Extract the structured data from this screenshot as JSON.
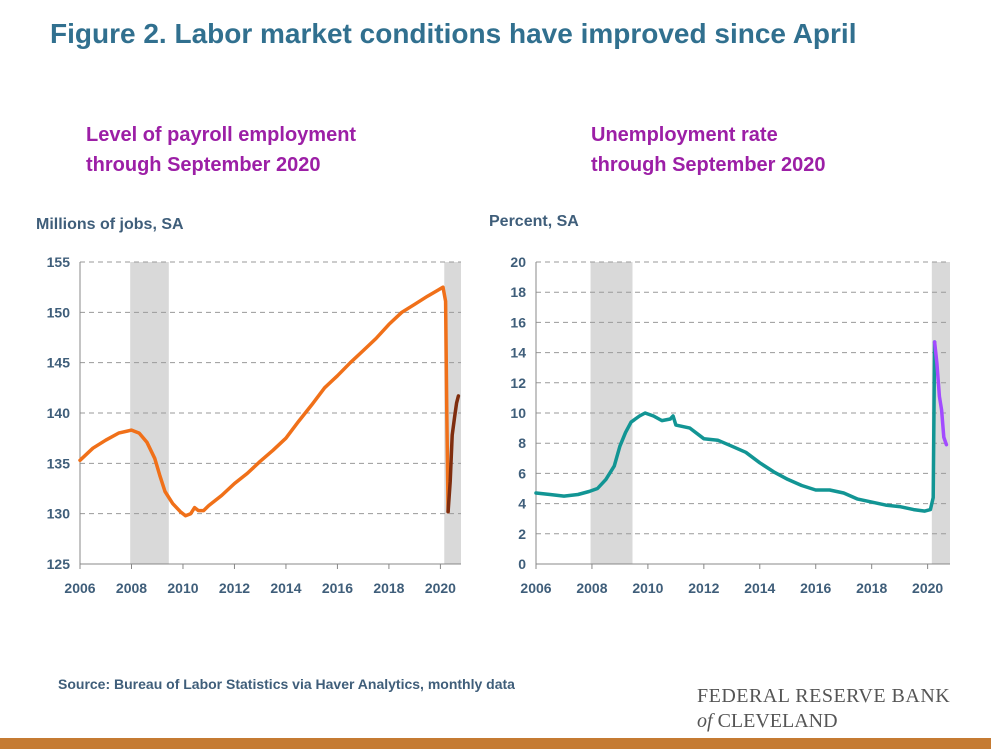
{
  "page": {
    "title": "Figure 2. Labor market conditions have improved since April",
    "source": "Source: Bureau of Labor Statistics via Haver Analytics, monthly data",
    "logo_line1": "FEDERAL RESERVE BANK",
    "logo_of": "of",
    "logo_line2": "CLEVELAND",
    "bottom_bar_color": "#c57b33"
  },
  "chart_data": [
    {
      "type": "line",
      "title": "Level of payroll employment",
      "subtitle": "through September 2020",
      "ylabel": "Millions of jobs, SA",
      "xlim": [
        2006,
        2020.8
      ],
      "ylim": [
        125,
        155
      ],
      "xticks": [
        "2006",
        "2008",
        "2010",
        "2012",
        "2014",
        "2016",
        "2018",
        "2020"
      ],
      "yticks": [
        "125",
        "130",
        "135",
        "140",
        "145",
        "150",
        "155"
      ],
      "grid": "horizontal dashed",
      "recessions": [
        [
          2007.95,
          2009.45
        ],
        [
          2020.15,
          2020.8
        ]
      ],
      "series": [
        {
          "color": "#f07019",
          "points": [
            [
              2006.0,
              135.3
            ],
            [
              2006.5,
              136.5
            ],
            [
              2007.0,
              137.3
            ],
            [
              2007.5,
              138.0
            ],
            [
              2008.0,
              138.3
            ],
            [
              2008.3,
              138.0
            ],
            [
              2008.6,
              137.1
            ],
            [
              2008.9,
              135.5
            ],
            [
              2009.1,
              133.8
            ],
            [
              2009.3,
              132.2
            ],
            [
              2009.6,
              131.0
            ],
            [
              2009.9,
              130.2
            ],
            [
              2010.1,
              129.8
            ],
            [
              2010.3,
              130.0
            ],
            [
              2010.45,
              130.6
            ],
            [
              2010.6,
              130.3
            ],
            [
              2010.8,
              130.3
            ],
            [
              2011.0,
              130.8
            ],
            [
              2011.5,
              131.8
            ],
            [
              2012.0,
              133.0
            ],
            [
              2012.5,
              134.0
            ],
            [
              2013.0,
              135.2
            ],
            [
              2013.5,
              136.3
            ],
            [
              2014.0,
              137.5
            ],
            [
              2014.5,
              139.2
            ],
            [
              2015.0,
              140.8
            ],
            [
              2015.5,
              142.5
            ],
            [
              2016.0,
              143.7
            ],
            [
              2016.5,
              145.0
            ],
            [
              2017.0,
              146.2
            ],
            [
              2017.5,
              147.4
            ],
            [
              2018.0,
              148.8
            ],
            [
              2018.5,
              150.0
            ],
            [
              2019.0,
              150.8
            ],
            [
              2019.5,
              151.6
            ],
            [
              2019.9,
              152.2
            ],
            [
              2020.1,
              152.5
            ],
            [
              2020.2,
              151.1
            ],
            [
              2020.25,
              140.0
            ],
            [
              2020.3,
              130.2
            ]
          ]
        },
        {
          "color": "#7f2d0e",
          "points": [
            [
              2020.3,
              130.2
            ],
            [
              2020.38,
              133.2
            ],
            [
              2020.46,
              137.8
            ],
            [
              2020.55,
              139.6
            ],
            [
              2020.63,
              141.0
            ],
            [
              2020.7,
              141.7
            ]
          ]
        }
      ]
    },
    {
      "type": "line",
      "title": "Unemployment rate",
      "subtitle": "through September 2020",
      "ylabel": "Percent, SA",
      "xlim": [
        2006,
        2020.8
      ],
      "ylim": [
        0,
        20
      ],
      "xticks": [
        "2006",
        "2008",
        "2010",
        "2012",
        "2014",
        "2016",
        "2018",
        "2020"
      ],
      "yticks": [
        "0",
        "2",
        "4",
        "6",
        "8",
        "10",
        "12",
        "14",
        "16",
        "18",
        "20"
      ],
      "grid": "horizontal dashed",
      "recessions": [
        [
          2007.95,
          2009.45
        ],
        [
          2020.15,
          2020.8
        ]
      ],
      "series": [
        {
          "color": "#129594",
          "points": [
            [
              2006.0,
              4.7
            ],
            [
              2006.5,
              4.6
            ],
            [
              2007.0,
              4.5
            ],
            [
              2007.5,
              4.6
            ],
            [
              2007.9,
              4.8
            ],
            [
              2008.2,
              5.0
            ],
            [
              2008.5,
              5.6
            ],
            [
              2008.8,
              6.5
            ],
            [
              2009.0,
              7.8
            ],
            [
              2009.2,
              8.7
            ],
            [
              2009.4,
              9.4
            ],
            [
              2009.7,
              9.8
            ],
            [
              2009.9,
              10.0
            ],
            [
              2010.2,
              9.8
            ],
            [
              2010.5,
              9.5
            ],
            [
              2010.8,
              9.6
            ],
            [
              2010.9,
              9.8
            ],
            [
              2011.0,
              9.2
            ],
            [
              2011.5,
              9.0
            ],
            [
              2012.0,
              8.3
            ],
            [
              2012.5,
              8.2
            ],
            [
              2013.0,
              7.8
            ],
            [
              2013.5,
              7.4
            ],
            [
              2014.0,
              6.7
            ],
            [
              2014.5,
              6.1
            ],
            [
              2015.0,
              5.6
            ],
            [
              2015.5,
              5.2
            ],
            [
              2016.0,
              4.9
            ],
            [
              2016.5,
              4.9
            ],
            [
              2017.0,
              4.7
            ],
            [
              2017.5,
              4.3
            ],
            [
              2018.0,
              4.1
            ],
            [
              2018.5,
              3.9
            ],
            [
              2019.0,
              3.8
            ],
            [
              2019.5,
              3.6
            ],
            [
              2019.9,
              3.5
            ],
            [
              2020.1,
              3.6
            ],
            [
              2020.2,
              4.4
            ],
            [
              2020.25,
              14.7
            ]
          ]
        },
        {
          "color": "#a24bff",
          "points": [
            [
              2020.25,
              14.7
            ],
            [
              2020.33,
              13.3
            ],
            [
              2020.42,
              11.1
            ],
            [
              2020.5,
              10.2
            ],
            [
              2020.58,
              8.4
            ],
            [
              2020.67,
              7.9
            ]
          ]
        }
      ]
    }
  ]
}
